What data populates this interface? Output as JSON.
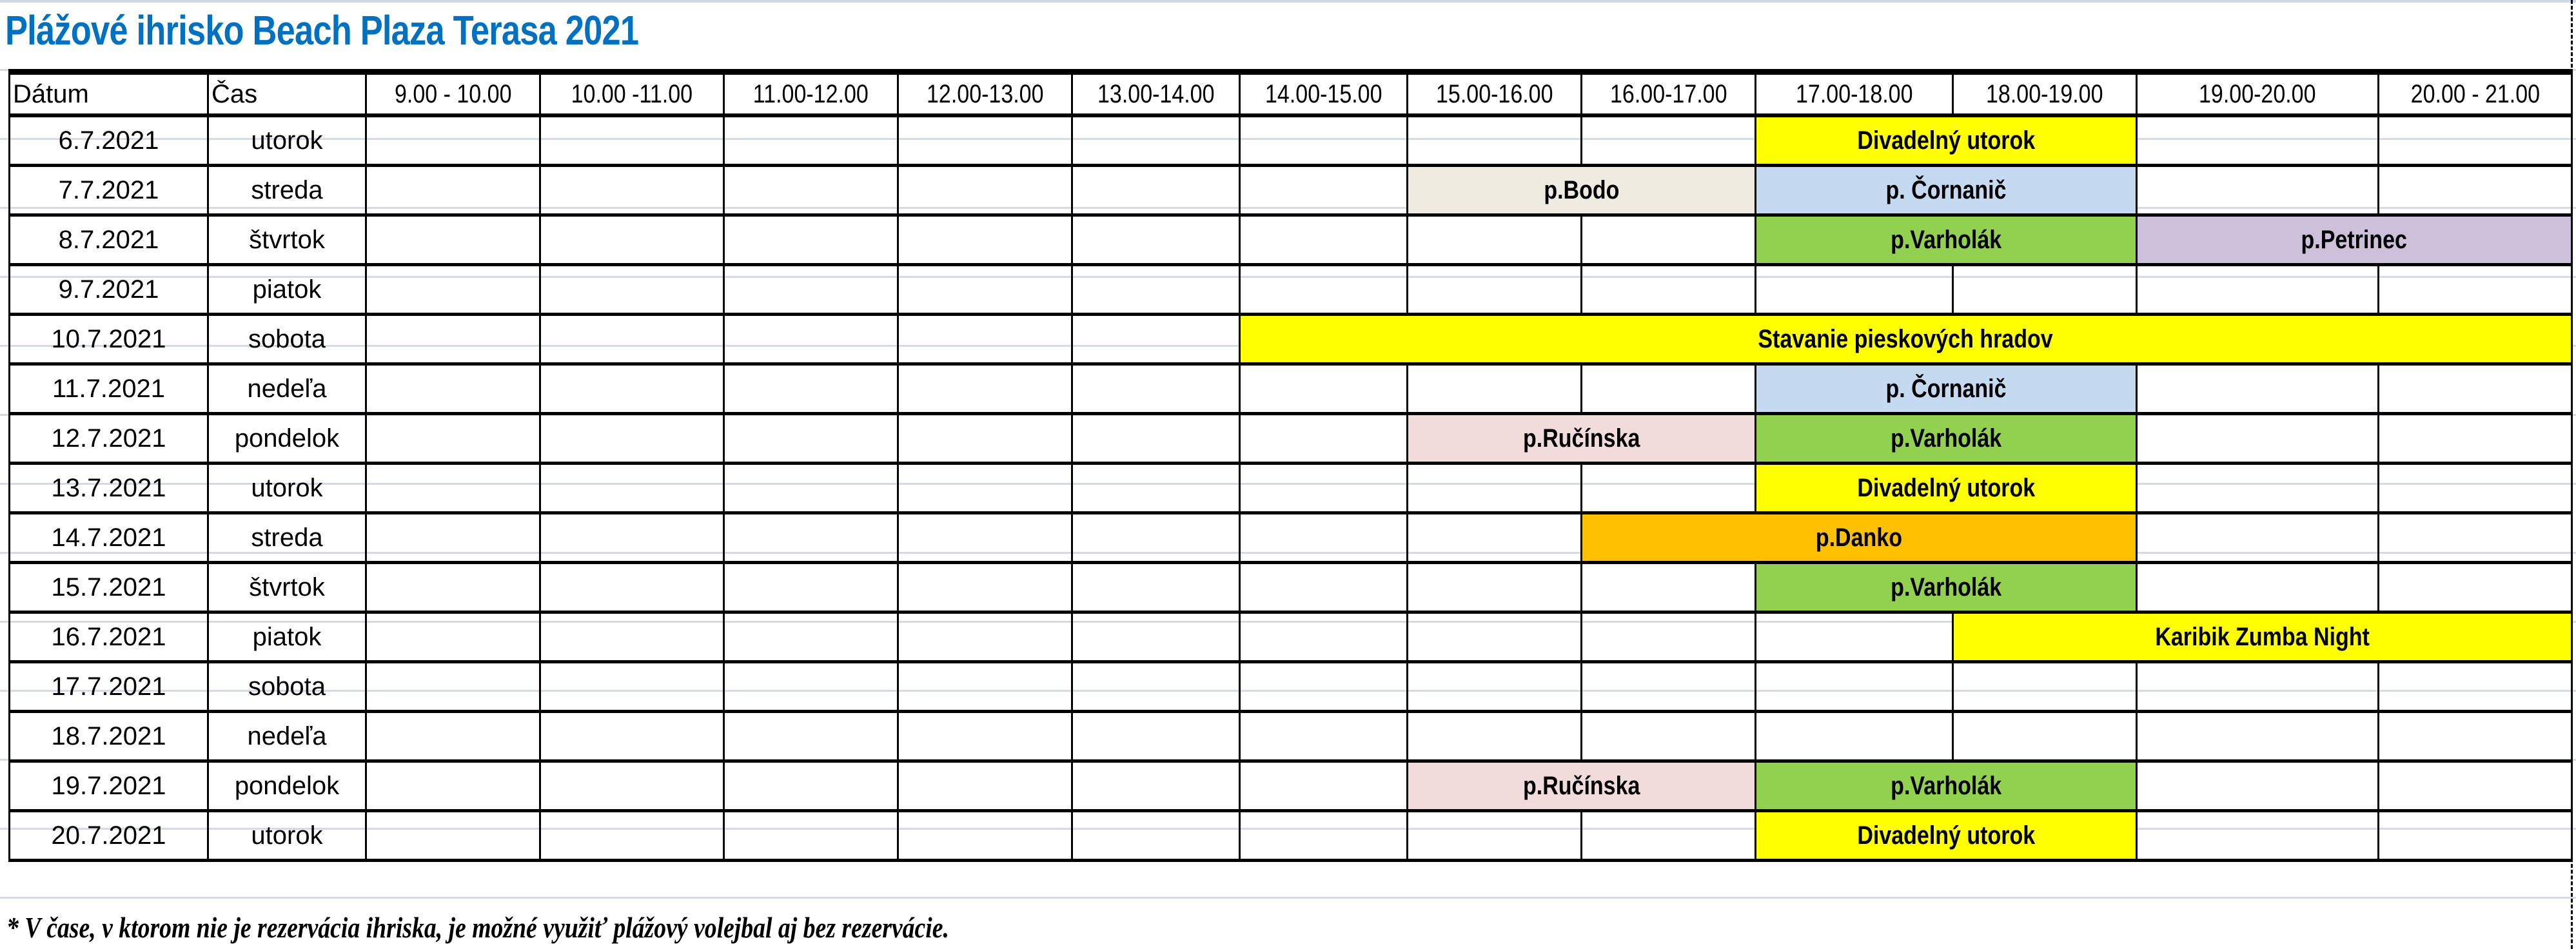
{
  "title": "Plážové ihrisko Beach Plaza Terasa 2021",
  "header": {
    "date_label": "Dátum",
    "day_label": "Čas",
    "slots": [
      "9.00 - 10.00",
      "10.00 -11.00",
      "11.00-12.00",
      "12.00-13.00",
      "13.00-14.00",
      "14.00-15.00",
      "15.00-16.00",
      "16.00-17.00",
      "17.00-18.00",
      "18.00-19.00",
      "19.00-20.00",
      "20.00 - 21.00"
    ]
  },
  "colors": {
    "title": "#0070C0",
    "yellow": "#FFFF00",
    "beige": "#EEECE1",
    "light_blue": "#C5D9F1",
    "green": "#92D050",
    "lavender": "#CCC0DA",
    "pink": "#F2DCDB",
    "orange": "#FFC000"
  },
  "rows": [
    {
      "date": "6.7.2021",
      "day": "utorok",
      "events": [
        {
          "label": "Divadelný utorok",
          "start": 8,
          "span": 2,
          "color": "yellow"
        }
      ]
    },
    {
      "date": "7.7.2021",
      "day": "streda",
      "events": [
        {
          "label": "p.Bodo",
          "start": 6,
          "span": 2,
          "color": "beige"
        },
        {
          "label": "p. Čornanič",
          "start": 8,
          "span": 2,
          "color": "light_blue"
        }
      ]
    },
    {
      "date": "8.7.2021",
      "day": "štvrtok",
      "events": [
        {
          "label": "p.Varholák",
          "start": 8,
          "span": 2,
          "color": "green"
        },
        {
          "label": "p.Petrinec",
          "start": 10,
          "span": 2,
          "color": "lavender"
        }
      ]
    },
    {
      "date": "9.7.2021",
      "day": "piatok",
      "events": []
    },
    {
      "date": "10.7.2021",
      "day": "sobota",
      "events": [
        {
          "label": "Stavanie pieskových hradov",
          "start": 5,
          "span": 7,
          "color": "yellow"
        }
      ]
    },
    {
      "date": "11.7.2021",
      "day": "nedeľa",
      "events": [
        {
          "label": "p. Čornanič",
          "start": 8,
          "span": 2,
          "color": "light_blue"
        }
      ]
    },
    {
      "date": "12.7.2021",
      "day": "pondelok",
      "events": [
        {
          "label": "p.Ručínska",
          "start": 6,
          "span": 2,
          "color": "pink"
        },
        {
          "label": "p.Varholák",
          "start": 8,
          "span": 2,
          "color": "green"
        }
      ]
    },
    {
      "date": "13.7.2021",
      "day": "utorok",
      "events": [
        {
          "label": "Divadelný utorok",
          "start": 8,
          "span": 2,
          "color": "yellow"
        }
      ]
    },
    {
      "date": "14.7.2021",
      "day": "streda",
      "events": [
        {
          "label": "p.Danko",
          "start": 7,
          "span": 3,
          "color": "orange"
        }
      ]
    },
    {
      "date": "15.7.2021",
      "day": "štvrtok",
      "events": [
        {
          "label": "p.Varholák",
          "start": 8,
          "span": 2,
          "color": "green"
        }
      ]
    },
    {
      "date": "16.7.2021",
      "day": "piatok",
      "events": [
        {
          "label": "Karibik Zumba Night",
          "start": 9,
          "span": 3,
          "color": "yellow"
        }
      ]
    },
    {
      "date": "17.7.2021",
      "day": "sobota",
      "events": []
    },
    {
      "date": "18.7.2021",
      "day": "nedeľa",
      "events": []
    },
    {
      "date": "19.7.2021",
      "day": "pondelok",
      "events": [
        {
          "label": "p.Ručínska",
          "start": 6,
          "span": 2,
          "color": "pink"
        },
        {
          "label": "p.Varholák",
          "start": 8,
          "span": 2,
          "color": "green"
        }
      ]
    },
    {
      "date": "20.7.2021",
      "day": "utorok",
      "events": [
        {
          "label": "Divadelný utorok",
          "start": 8,
          "span": 2,
          "color": "yellow"
        }
      ]
    }
  ],
  "footnote": "* V čase, v ktorom nie je rezervácia ihriska, je možné využiť plážový volejbal aj bez rezervácie."
}
